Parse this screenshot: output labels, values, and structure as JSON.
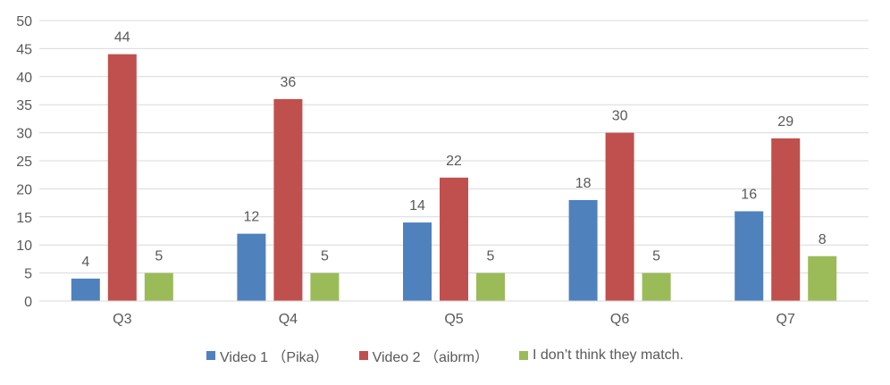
{
  "chart_data": {
    "type": "bar",
    "categories": [
      "Q3",
      "Q4",
      "Q5",
      "Q6",
      "Q7"
    ],
    "series": [
      {
        "name": "Video 1 （Pika）",
        "values": [
          4,
          12,
          14,
          18,
          16
        ],
        "color": "#4F81BD"
      },
      {
        "name": "Video 2 （aibrm）",
        "values": [
          44,
          36,
          22,
          30,
          29
        ],
        "color": "#C0504D"
      },
      {
        "name": "I don’t think they match.",
        "values": [
          5,
          5,
          5,
          5,
          8
        ],
        "color": "#9BBB59"
      }
    ],
    "y_ticks": [
      "0",
      "5",
      "10",
      "15",
      "20",
      "25",
      "30",
      "35",
      "40",
      "45",
      "50"
    ],
    "ylim": [
      0,
      50
    ],
    "grid": true,
    "data_labels": true,
    "legend_position": "bottom"
  }
}
